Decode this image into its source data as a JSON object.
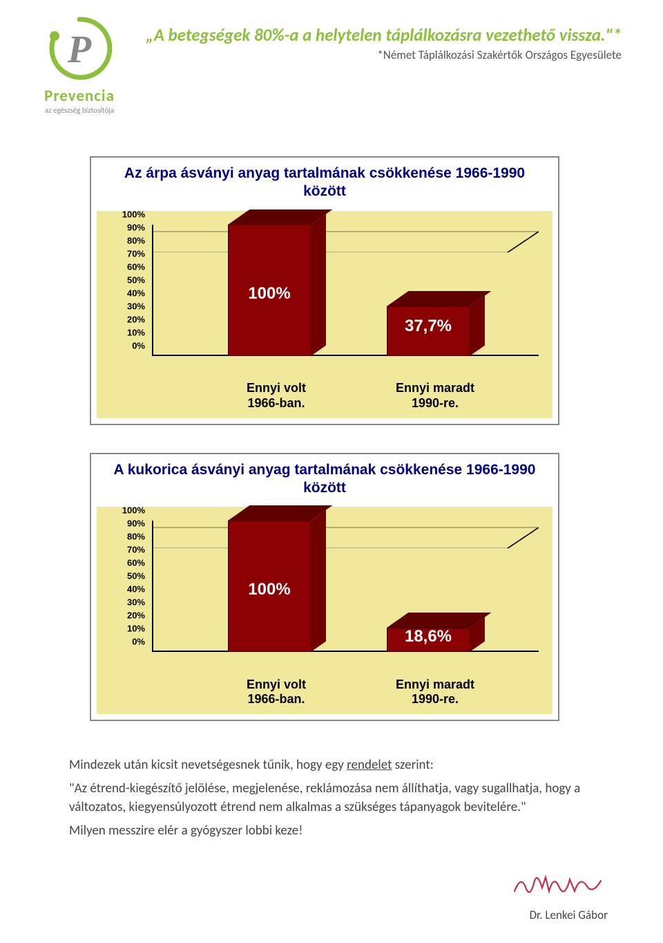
{
  "logo": {
    "brand": "Prevencia",
    "tagline": "az egészség biztosítója",
    "letter": "P",
    "swirl_color": "#8bbf3c",
    "letter_color": "#888888"
  },
  "headline": "„A betegségek 80%-a a helytelen táplálkozásra vezethető vissza.\"*",
  "subhead": "*Német Táplálkozási Szakértők Országos Egyesülete",
  "charts": [
    {
      "title": "Az árpa ásványi anyag tartalmának csökkenése 1966-1990 között",
      "background": "#f0e89a",
      "title_color": "#000080",
      "bar_color_front": "#8b0000",
      "bar_color_top": "#5c0000",
      "bar_color_side": "#6f0000",
      "y_ticks": [
        "0%",
        "10%",
        "20%",
        "30%",
        "40%",
        "50%",
        "60%",
        "70%",
        "80%",
        "90%",
        "100%"
      ],
      "bars": [
        {
          "value": 100,
          "label": "100%",
          "x_label": "Ennyi volt\n1966-ban."
        },
        {
          "value": 37.7,
          "label": "37,7%",
          "x_label": "Ennyi maradt\n1990-re."
        }
      ]
    },
    {
      "title": "A kukorica ásványi anyag tartalmának csökkenése 1966-1990 között",
      "background": "#f0e89a",
      "title_color": "#000080",
      "bar_color_front": "#8b0000",
      "bar_color_top": "#5c0000",
      "bar_color_side": "#6f0000",
      "y_ticks": [
        "0%",
        "10%",
        "20%",
        "30%",
        "40%",
        "50%",
        "60%",
        "70%",
        "80%",
        "90%",
        "100%"
      ],
      "bars": [
        {
          "value": 100,
          "label": "100%",
          "x_label": "Ennyi volt\n1966-ban."
        },
        {
          "value": 18.6,
          "label": "18,6%",
          "x_label": "Ennyi maradt\n1990-re."
        }
      ]
    }
  ],
  "body": {
    "intro": "Mindezek után kicsit nevetségesnek tűnik, hogy egy ",
    "rendelet": "rendelet",
    "after_rendelet": " szerint:",
    "quote": "\"Az étrend-kiegészítő jelölése, megjelenése, reklámozása nem állíthatja, vagy sugallhatja, hogy a változatos, kiegyensúlyozott étrend nem alkalmas a szükséges tápanyagok bevitelére.\"",
    "closing": "Milyen messzire elér a gyógyszer lobbi keze!"
  },
  "footer": {
    "name": "Dr. Lenkei Gábor",
    "signature_color": "#c0304a"
  }
}
